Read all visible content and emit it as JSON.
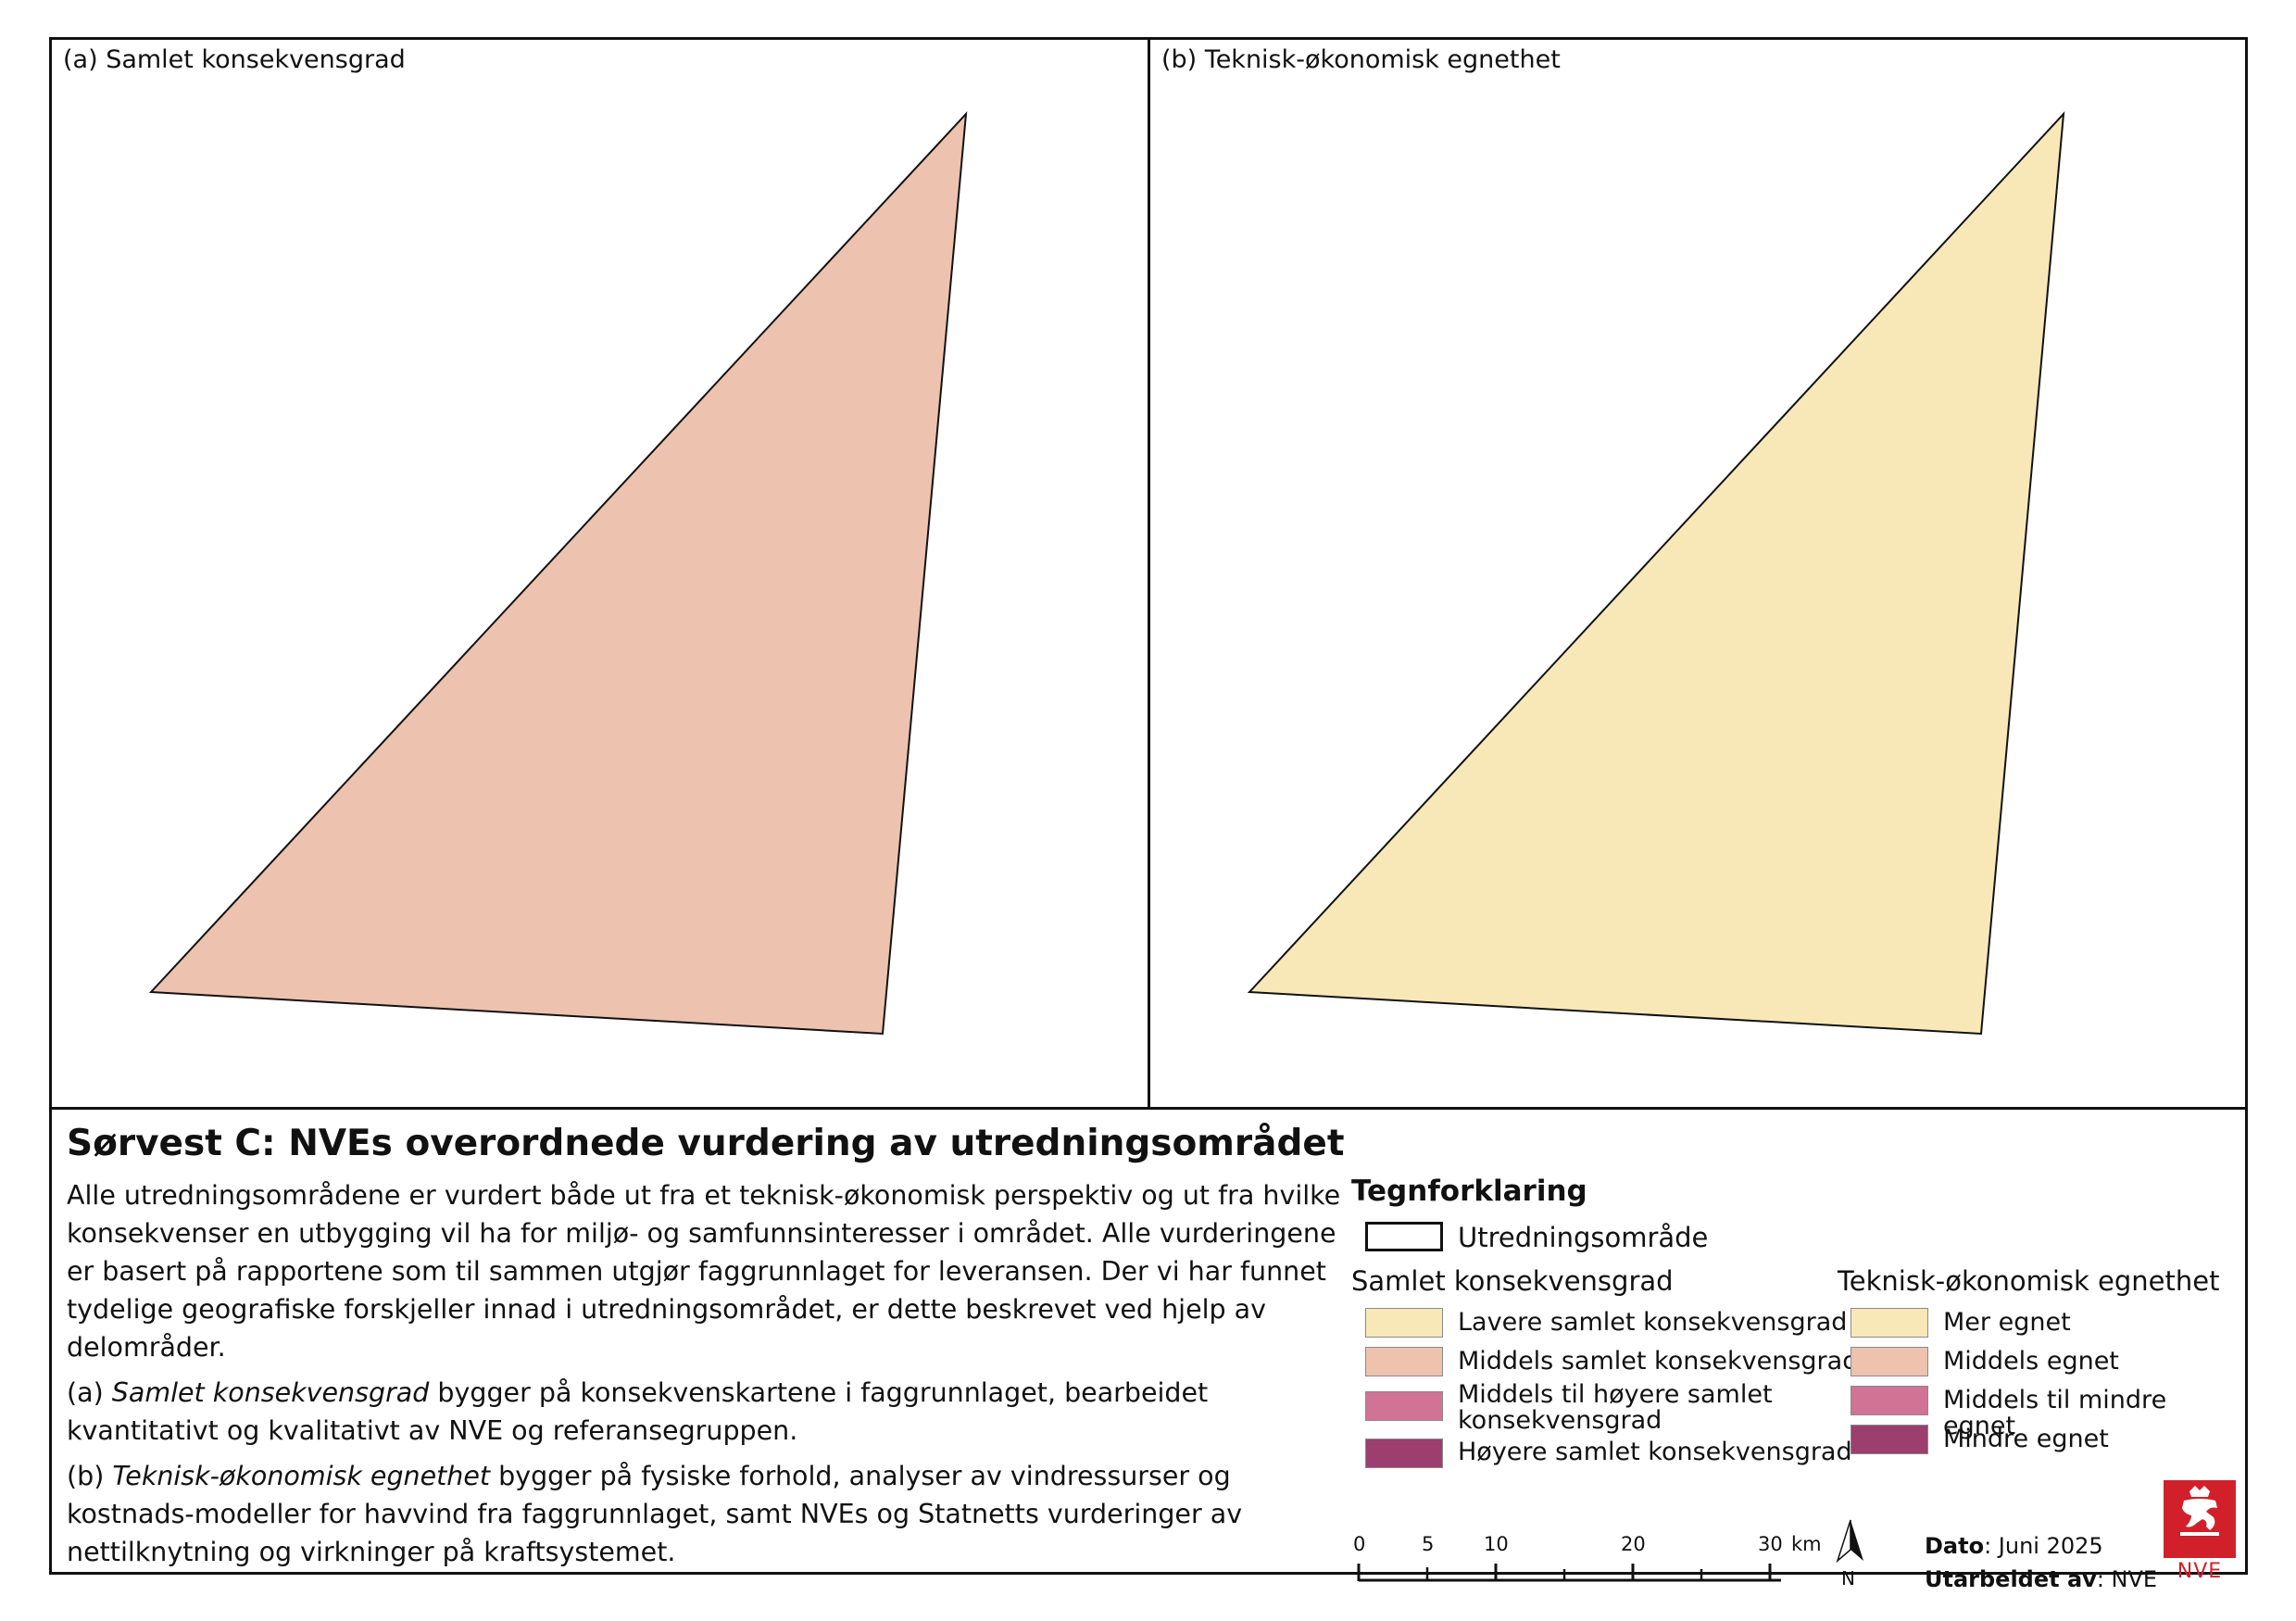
{
  "panels": {
    "a": {
      "label": "(a) Samlet konsekvensgrad",
      "fill": "#edc2ae"
    },
    "b": {
      "label": "(b) Teknisk-økonomisk egnethet",
      "fill": "#f8e8b8"
    }
  },
  "title": "Sørvest C: NVEs overordnede vurdering av utredningsområdet",
  "description": {
    "p1": "Alle utredningsområdene er vurdert både ut fra et teknisk-økonomisk perspektiv og ut fra hvilke konsekvenser en utbygging vil ha for miljø- og samfunnsinteresser i området. Alle vurderingene er basert på rapportene som til sammen utgjør faggrunnlaget for leveransen. Der vi har funnet tydelige geografiske forskjeller innad i utredningsområdet, er dette beskrevet ved hjelp av delområder.",
    "p2_prefix": "(a) ",
    "p2_italic": "Samlet konsekvensgrad",
    "p2_rest": " bygger på konsekvenskartene i faggrunnlaget, bearbeidet kvantitativt og kvalitativt av NVE og referansegruppen.",
    "p3_prefix": "(b) ",
    "p3_italic": "Teknisk-økonomisk egnethet",
    "p3_rest": " bygger på fysiske forhold, analyser av vindressurser og kostnads-modeller for havvind fra faggrunnlaget, samt NVEs og Statnetts vurderinger av nettilknytning og virkninger på kraftsystemet."
  },
  "legend": {
    "title": "Tegnforklaring",
    "outline_label": "Utredningsområde",
    "group_a": {
      "title": "Samlet konsekvensgrad",
      "items": [
        {
          "label": "Lavere samlet konsekvensgrad",
          "color": "#f8e8b8"
        },
        {
          "label": "Middels samlet konsekvensgrad",
          "color": "#edc2ae"
        },
        {
          "label": "Middels til høyere samlet konsekvensgrad",
          "color": "#d07394"
        },
        {
          "label": "Høyere samlet konsekvensgrad",
          "color": "#9c3e6e"
        }
      ]
    },
    "group_b": {
      "title": "Teknisk-økonomisk egnethet",
      "items": [
        {
          "label": "Mer egnet",
          "color": "#f8e8b8"
        },
        {
          "label": "Middels egnet",
          "color": "#edc2ae"
        },
        {
          "label": "Middels til mindre egnet",
          "color": "#d07394"
        },
        {
          "label": "Mindre egnet",
          "color": "#9c3e6e"
        }
      ]
    }
  },
  "scale": {
    "ticks": [
      "0",
      "5",
      "10",
      "20",
      "30"
    ],
    "unit": "km"
  },
  "north_label": "N",
  "info": {
    "date_label": "Dato",
    "date_value": ": Juni 2025",
    "author_label": "Utarbeidet av",
    "author_value": ": NVE"
  },
  "logo": {
    "text": "NVE",
    "color": "#d2202a"
  }
}
